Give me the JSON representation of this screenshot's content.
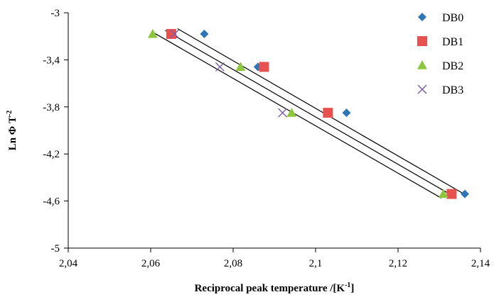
{
  "chart_data": {
    "type": "scatter",
    "title": "",
    "xlabel": {
      "main": "Reciprocal peak temperature /[K",
      "sup": "-1",
      "tail": "]"
    },
    "ylabel": {
      "main": "Ln Φ T",
      "sup": "-2"
    },
    "xlim": [
      2.04,
      2.14
    ],
    "ylim": [
      -5,
      -3
    ],
    "x_ticks": [
      "2,04",
      "2,06",
      "2,08",
      "2,1",
      "2,12",
      "2,14"
    ],
    "y_ticks": [
      "-3",
      "-3,4",
      "-3,8",
      "-4,2",
      "-4,6",
      "-5"
    ],
    "x_tick_values": [
      2.04,
      2.06,
      2.08,
      2.1,
      2.12,
      2.14
    ],
    "y_tick_values": [
      -3.0,
      -3.4,
      -3.8,
      -4.2,
      -4.6,
      -5.0
    ],
    "legend_position": "right",
    "series": [
      {
        "name": "DB0",
        "marker": "diamond",
        "color": "#2e75b6",
        "x": [
          2.073,
          2.086,
          2.1075,
          2.1362
        ],
        "y": [
          -3.18,
          -3.46,
          -3.85,
          -4.54
        ]
      },
      {
        "name": "DB1",
        "marker": "square",
        "color": "#e5524f",
        "x": [
          2.065,
          2.0875,
          2.103,
          2.133
        ],
        "y": [
          -3.18,
          -3.46,
          -3.85,
          -4.54
        ]
      },
      {
        "name": "DB2",
        "marker": "triangle",
        "color": "#8cc63f",
        "x": [
          2.0605,
          2.0818,
          2.0942,
          2.131
        ],
        "y": [
          -3.18,
          -3.46,
          -3.85,
          -4.54
        ]
      },
      {
        "name": "DB3",
        "marker": "x",
        "color": "#7a5fa8",
        "x": [
          2.0658,
          2.0768,
          2.092
        ],
        "y": [
          -3.18,
          -3.46,
          -3.85
        ]
      }
    ],
    "trendlines": [
      {
        "x": [
          2.0665,
          2.1355
        ],
        "y": [
          -3.135,
          -4.53
        ]
      },
      {
        "x": [
          2.0635,
          2.133
        ],
        "y": [
          -3.15,
          -4.55
        ]
      },
      {
        "x": [
          2.061,
          2.1305
        ],
        "y": [
          -3.175,
          -4.575
        ]
      }
    ]
  }
}
